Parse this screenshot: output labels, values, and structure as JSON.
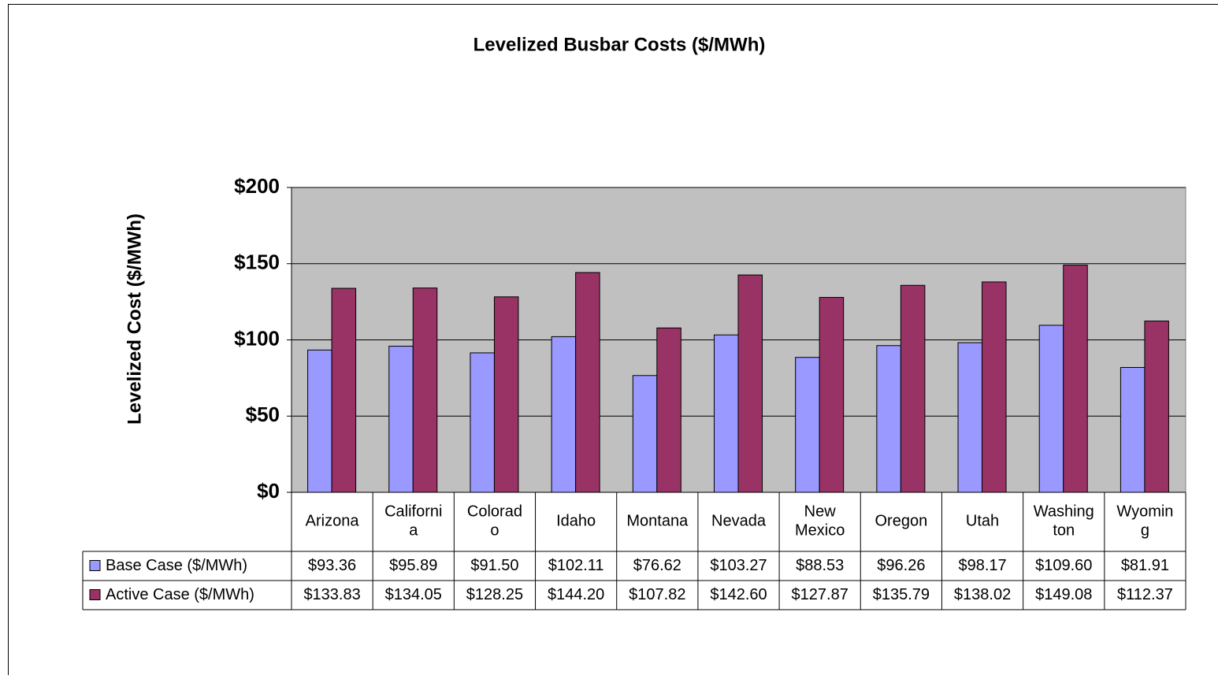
{
  "chart_data": {
    "type": "bar",
    "title": "Levelized Busbar Costs ($/MWh)",
    "y_label": "Levelized Cost ($/MWh)",
    "categories": [
      "Arizona",
      "California",
      "Colorado",
      "Idaho",
      "Montana",
      "Nevada",
      "New Mexico",
      "Oregon",
      "Utah",
      "Washington",
      "Wyoming"
    ],
    "series": [
      {
        "name": "Base Case ($/MWh)",
        "color": "#9999ff",
        "values": [
          93.36,
          95.89,
          91.5,
          102.11,
          76.62,
          103.27,
          88.53,
          96.26,
          98.17,
          109.6,
          81.91
        ],
        "value_labels": [
          "$93.36",
          "$95.89",
          "$91.50",
          "$102.11",
          "$76.62",
          "$103.27",
          "$88.53",
          "$96.26",
          "$98.17",
          "$109.60",
          "$81.91"
        ]
      },
      {
        "name": "Active Case ($/MWh)",
        "color": "#993366",
        "values": [
          133.83,
          134.05,
          128.25,
          144.2,
          107.82,
          142.6,
          127.87,
          135.79,
          138.02,
          149.08,
          112.37
        ],
        "value_labels": [
          "$133.83",
          "$134.05",
          "$128.25",
          "$144.20",
          "$107.82",
          "$142.60",
          "$127.87",
          "$135.79",
          "$138.02",
          "$149.08",
          "$112.37"
        ]
      }
    ],
    "ylim": [
      0,
      200
    ],
    "yticks": [
      {
        "value": 0,
        "label": "$0"
      },
      {
        "value": 50,
        "label": "$50"
      },
      {
        "value": 100,
        "label": "$100"
      },
      {
        "value": 150,
        "label": "$150"
      },
      {
        "value": 200,
        "label": "$200"
      }
    ],
    "grid": true,
    "plot_background": "#c0c0c0"
  }
}
